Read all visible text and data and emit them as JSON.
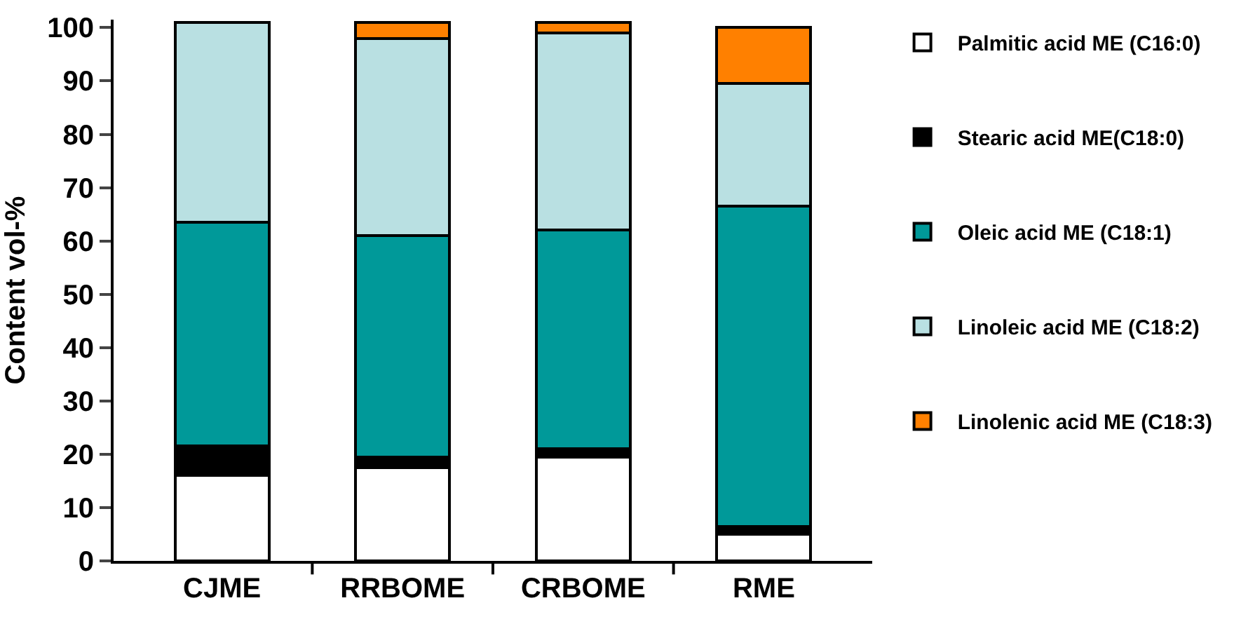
{
  "chart_data": {
    "type": "bar",
    "stacked": true,
    "ylabel": "Content vol-%",
    "categories": [
      "CJME",
      "RRBOME",
      "CRBOME",
      "RME"
    ],
    "series": [
      {
        "name": "Palmitic acid ME (C16:0)",
        "color": "#ffffff",
        "values": [
          16,
          17.5,
          19.5,
          5
        ]
      },
      {
        "name": "Stearic acid ME(C18:0)",
        "color": "#000000",
        "values": [
          5.5,
          2,
          1.5,
          1.5
        ]
      },
      {
        "name": "Oleic acid ME (C18:1)",
        "color": "#009999",
        "values": [
          42,
          41.5,
          41,
          60
        ]
      },
      {
        "name": "Linoleic acid ME (C18:2)",
        "color": "#b9e0e2",
        "values": [
          37.5,
          37,
          37,
          23
        ]
      },
      {
        "name": "Linolenic acid ME (C18:3)",
        "color": "#ff8000",
        "values": [
          null,
          3,
          2,
          10.5
        ]
      }
    ],
    "ylim": [
      0,
      101.5
    ],
    "yticks": [
      0,
      10,
      20,
      30,
      40,
      50,
      60,
      70,
      80,
      90,
      100
    ],
    "legend": "right"
  }
}
